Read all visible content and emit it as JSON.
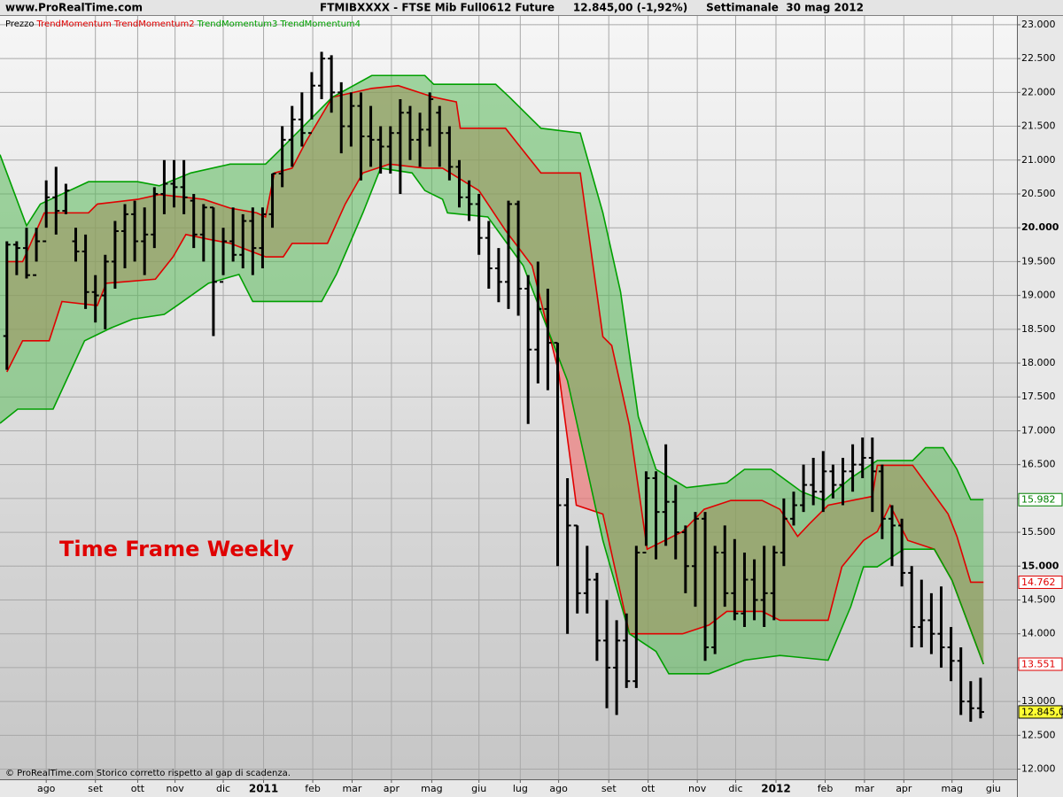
{
  "header": {
    "site": "www.ProRealTime.com",
    "title": "FTMIBXXXX - FTSE Mib Full0612 Future     12.845,00 (-1,92%)     Settimanale  30 mag 2012"
  },
  "chart_data": {
    "type": "ohlc",
    "annotation": "Time Frame Weekly",
    "footer": "© ProRealTime.com  Storico corretto rispetto al gap di scadenza.",
    "xlim": [
      -0.7,
      102.7
    ],
    "ylim": [
      11850,
      23130
    ],
    "grid": true,
    "xticks": [
      {
        "value": 4.0,
        "label": "ago"
      },
      {
        "value": 9.0,
        "label": "set"
      },
      {
        "value": 13.3,
        "label": "ott"
      },
      {
        "value": 17.1,
        "label": "nov"
      },
      {
        "value": 22.0,
        "label": "dic"
      },
      {
        "value": 26.1,
        "label": "2011"
      },
      {
        "value": 31.1,
        "label": "feb"
      },
      {
        "value": 35.1,
        "label": "mar"
      },
      {
        "value": 39.1,
        "label": "apr"
      },
      {
        "value": 43.2,
        "label": "mag"
      },
      {
        "value": 48.0,
        "label": "giu"
      },
      {
        "value": 52.2,
        "label": "lug"
      },
      {
        "value": 56.1,
        "label": "ago"
      },
      {
        "value": 61.2,
        "label": "set"
      },
      {
        "value": 65.2,
        "label": "ott"
      },
      {
        "value": 70.2,
        "label": "nov"
      },
      {
        "value": 74.1,
        "label": "dic"
      },
      {
        "value": 78.2,
        "label": "2012"
      },
      {
        "value": 83.2,
        "label": "feb"
      },
      {
        "value": 87.2,
        "label": "mar"
      },
      {
        "value": 91.2,
        "label": "apr"
      },
      {
        "value": 96.1,
        "label": "mag"
      },
      {
        "value": 100.3,
        "label": "giu"
      }
    ],
    "yticks": [
      {
        "value": 12000,
        "label": "12.000"
      },
      {
        "value": 12500,
        "label": "12.500"
      },
      {
        "value": 13000,
        "label": "13.000"
      },
      {
        "value": 13500,
        "label": "13.500"
      },
      {
        "value": 14000,
        "label": "14.000"
      },
      {
        "value": 14500,
        "label": "14.500"
      },
      {
        "value": 15000,
        "label": "15.000"
      },
      {
        "value": 15500,
        "label": "15.500"
      },
      {
        "value": 16000,
        "label": "16.000"
      },
      {
        "value": 16500,
        "label": "16.500"
      },
      {
        "value": 17000,
        "label": "17.000"
      },
      {
        "value": 17500,
        "label": "17.500"
      },
      {
        "value": 18000,
        "label": "18.000"
      },
      {
        "value": 18500,
        "label": "18.500"
      },
      {
        "value": 19000,
        "label": "19.000"
      },
      {
        "value": 19500,
        "label": "19.500"
      },
      {
        "value": 20000,
        "label": "20.000"
      },
      {
        "value": 20500,
        "label": "20.500"
      },
      {
        "value": 21000,
        "label": "21.000"
      },
      {
        "value": 21500,
        "label": "21.500"
      },
      {
        "value": 22000,
        "label": "22.000"
      },
      {
        "value": 22500,
        "label": "22.500"
      },
      {
        "value": 23000,
        "label": "23.000"
      }
    ],
    "price_tags": [
      {
        "value": 15982,
        "label": "15.982",
        "color": "#008000",
        "background": "#ffffff"
      },
      {
        "value": 14762,
        "label": "14.762",
        "color": "#e00000",
        "background": "#ffffff"
      },
      {
        "value": 13551,
        "label": "13.551",
        "color": "#e00000",
        "background": "#ffffff"
      },
      {
        "value": 12845,
        "label": "12.845,0",
        "color": "#000000",
        "background": "#ffff33"
      }
    ],
    "series": [
      {
        "name": "Prezzo",
        "color": "#000000",
        "values": [
          [
            18400,
            19800,
            17900,
            19750
          ],
          [
            19750,
            19800,
            19300,
            19700
          ],
          [
            19700,
            20000,
            19250,
            19300
          ],
          [
            19300,
            20000,
            19500,
            19800
          ],
          [
            19800,
            20700,
            20000,
            20450
          ],
          [
            20450,
            20900,
            19900,
            20250
          ],
          [
            20250,
            20650,
            20200,
            20550
          ],
          [
            19800,
            20000,
            19500,
            19650
          ],
          [
            19650,
            19900,
            18800,
            19050
          ],
          [
            19050,
            19300,
            18600,
            19000
          ],
          [
            19000,
            19600,
            18500,
            19500
          ],
          [
            19500,
            20100,
            19100,
            19950
          ],
          [
            19950,
            20350,
            19400,
            20200
          ],
          [
            20200,
            20400,
            19500,
            19800
          ],
          [
            19800,
            20300,
            19300,
            19900
          ],
          [
            19900,
            20600,
            19700,
            20500
          ],
          [
            20500,
            21000,
            20200,
            20650
          ],
          [
            20650,
            21000,
            20300,
            20600
          ],
          [
            20600,
            21000,
            20200,
            20450
          ],
          [
            20400,
            20500,
            19700,
            19900
          ],
          [
            19900,
            20350,
            19500,
            20300
          ],
          [
            20300,
            20300,
            18400,
            19200
          ],
          [
            19200,
            20000,
            19300,
            19800
          ],
          [
            19800,
            20300,
            19500,
            19600
          ],
          [
            19600,
            20200,
            19400,
            20100
          ],
          [
            20100,
            20300,
            19300,
            19700
          ],
          [
            19700,
            20300,
            19400,
            20200
          ],
          [
            20200,
            20800,
            20000,
            20800
          ],
          [
            20800,
            21500,
            20600,
            21300
          ],
          [
            21300,
            21800,
            20900,
            21600
          ],
          [
            21600,
            22000,
            21200,
            21400
          ],
          [
            21400,
            22300,
            21600,
            22100
          ],
          [
            22100,
            22600,
            21900,
            22500
          ],
          [
            22500,
            22550,
            21700,
            22000
          ],
          [
            22000,
            22150,
            21100,
            21500
          ],
          [
            21500,
            22000,
            21200,
            21800
          ],
          [
            21800,
            22000,
            20700,
            21350
          ],
          [
            21350,
            21800,
            20900,
            21300
          ],
          [
            21300,
            21500,
            20800,
            21200
          ],
          [
            21200,
            21500,
            20800,
            21400
          ],
          [
            21400,
            21900,
            20500,
            21700
          ],
          [
            21700,
            21800,
            21000,
            21300
          ],
          [
            21300,
            21700,
            20900,
            21450
          ],
          [
            21450,
            22000,
            21200,
            21900
          ],
          [
            21700,
            21800,
            20900,
            21400
          ],
          [
            21400,
            21500,
            20700,
            20900
          ],
          [
            20900,
            21000,
            20300,
            20450
          ],
          [
            20450,
            20700,
            20100,
            20350
          ],
          [
            20350,
            20500,
            19600,
            19850
          ],
          [
            19850,
            20100,
            19100,
            19400
          ],
          [
            19400,
            19700,
            18900,
            19200
          ],
          [
            19200,
            20400,
            18800,
            20350
          ],
          [
            20350,
            20400,
            18700,
            19100
          ],
          [
            19100,
            19300,
            17100,
            18200
          ],
          [
            18200,
            19500,
            17700,
            18800
          ],
          [
            18800,
            19100,
            17600,
            18300
          ],
          [
            18300,
            18300,
            15000,
            15900
          ],
          [
            15900,
            16300,
            14000,
            15600
          ],
          [
            15600,
            15600,
            14300,
            14600
          ],
          [
            14600,
            15300,
            14300,
            14800
          ],
          [
            14800,
            14900,
            13600,
            13900
          ],
          [
            13900,
            14500,
            12900,
            13500
          ],
          [
            13500,
            14200,
            12800,
            13900
          ],
          [
            13900,
            14300,
            13200,
            13300
          ],
          [
            13300,
            15300,
            13200,
            15200
          ],
          [
            15200,
            16400,
            15300,
            16300
          ],
          [
            16300,
            16400,
            15100,
            15800
          ],
          [
            15800,
            16800,
            15300,
            15950
          ],
          [
            15950,
            16200,
            15100,
            15500
          ],
          [
            15500,
            15600,
            14600,
            15000
          ],
          [
            15000,
            15800,
            14400,
            15700
          ],
          [
            15700,
            15800,
            13600,
            13800
          ],
          [
            13800,
            15300,
            13700,
            15200
          ],
          [
            15200,
            15600,
            14400,
            14600
          ],
          [
            14600,
            15400,
            14200,
            14300
          ],
          [
            14300,
            15200,
            14100,
            14800
          ],
          [
            14800,
            15100,
            14200,
            14500
          ],
          [
            14500,
            15300,
            14100,
            14600
          ],
          [
            14600,
            15300,
            14200,
            15200
          ],
          [
            15200,
            16000,
            15000,
            15700
          ],
          [
            15700,
            16100,
            15600,
            15900
          ],
          [
            15900,
            16500,
            15800,
            16200
          ],
          [
            16200,
            16600,
            15900,
            16100
          ],
          [
            16100,
            16700,
            15800,
            16400
          ],
          [
            16400,
            16500,
            16000,
            16200
          ],
          [
            16200,
            16600,
            15900,
            16400
          ],
          [
            16400,
            16800,
            16100,
            16500
          ],
          [
            16500,
            16900,
            16300,
            16600
          ],
          [
            16600,
            16900,
            15800,
            16400
          ],
          [
            16400,
            16500,
            15400,
            15700
          ],
          [
            15700,
            15900,
            15000,
            15600
          ],
          [
            15600,
            15700,
            14700,
            14900
          ],
          [
            14900,
            15000,
            13800,
            14100
          ],
          [
            14100,
            14800,
            13800,
            14200
          ],
          [
            14200,
            14600,
            13700,
            14000
          ],
          [
            14000,
            14700,
            13500,
            13800
          ],
          [
            13800,
            14100,
            13300,
            13600
          ],
          [
            13600,
            13800,
            12800,
            13000
          ],
          [
            13000,
            13300,
            12700,
            12900
          ],
          [
            12900,
            13350,
            12750,
            12845
          ]
        ]
      },
      {
        "name": "TrendMomentum",
        "color": "#e00000",
        "fill": "rgba(240,110,110,0.62)",
        "x": [
          0,
          1.6,
          3.8,
          8.3,
          9.2,
          13.3,
          15.5,
          20.0,
          22.7,
          25.4,
          26.3,
          27.2,
          29.0,
          30.4,
          33.1,
          37.1,
          39.8,
          43.4,
          45.7,
          46.1,
          50.7,
          52.5,
          54.3,
          58.3,
          60.6,
          61.5,
          63.3,
          65.1,
          68.7,
          70.9,
          73.6,
          76.8,
          78.6,
          80.4,
          81.7,
          83.5,
          88.0,
          88.5,
          92.1,
          95.7,
          96.6,
          98.0,
          99.3
        ],
        "values": [
          19500,
          19500,
          20220,
          20220,
          20350,
          20420,
          20490,
          20420,
          20290,
          20220,
          20160,
          20810,
          20880,
          21270,
          21930,
          22060,
          22100,
          21930,
          21860,
          21470,
          21470,
          21140,
          20810,
          20810,
          18390,
          18260,
          17080,
          15250,
          15510,
          15840,
          15970,
          15970,
          15840,
          15440,
          15640,
          15900,
          16030,
          16490,
          16490,
          15770,
          15440,
          14762,
          14762
        ]
      },
      {
        "name": "TrendMomentum2",
        "color": "#e00000",
        "x": [
          0,
          1.6,
          4.3,
          5.6,
          9.2,
          10.1,
          15.1,
          16.9,
          18.2,
          20.5,
          22.7,
          26.3,
          28.1,
          29.0,
          32.6,
          34.4,
          36.2,
          38.9,
          42.5,
          44.3,
          48.0,
          50.7,
          53.4,
          56.1,
          57.9,
          60.6,
          63.3,
          66.0,
          68.7,
          71.4,
          73.2,
          76.8,
          78.6,
          83.5,
          84.9,
          87.1,
          88.5,
          89.8,
          91.6,
          94.3,
          96.1,
          99.3
        ],
        "values": [
          17870,
          18330,
          18330,
          18910,
          18850,
          19180,
          19240,
          19570,
          19900,
          19830,
          19770,
          19570,
          19570,
          19770,
          19770,
          20350,
          20810,
          20940,
          20880,
          20880,
          20550,
          19960,
          19440,
          17870,
          15900,
          15770,
          14000,
          14000,
          14000,
          14130,
          14330,
          14330,
          14200,
          14200,
          14990,
          15380,
          15510,
          15900,
          15380,
          15250,
          14790,
          13551
        ]
      },
      {
        "name": "TrendMomentum3",
        "color": "#00a000",
        "fill": "rgba(90,185,90,0.55)",
        "x": [
          -0.7,
          2.0,
          3.4,
          8.3,
          13.3,
          15.5,
          18.7,
          22.7,
          26.3,
          27.7,
          33.1,
          37.1,
          42.5,
          43.4,
          49.7,
          51.1,
          54.3,
          58.3,
          60.6,
          62.4,
          64.2,
          66.0,
          69.1,
          73.2,
          75.0,
          77.7,
          80.8,
          83.1,
          85.8,
          88.5,
          92.1,
          93.4,
          95.2,
          96.6,
          98.0,
          99.3
        ],
        "values": [
          21080,
          20030,
          20350,
          20680,
          20680,
          20620,
          20810,
          20940,
          20940,
          21140,
          21930,
          22250,
          22250,
          22120,
          22120,
          21930,
          21470,
          21400,
          20220,
          19050,
          17210,
          16430,
          16160,
          16230,
          16430,
          16430,
          16100,
          15970,
          16300,
          16560,
          16560,
          16750,
          16750,
          16430,
          15982,
          15982
        ]
      },
      {
        "name": "TrendMomentum4",
        "color": "#00a000",
        "x": [
          -0.7,
          1.1,
          4.7,
          7.9,
          10.6,
          12.8,
          16.0,
          17.3,
          20.5,
          23.6,
          25.0,
          32.0,
          33.5,
          36.2,
          38.0,
          41.2,
          42.5,
          44.3,
          44.8,
          48.9,
          52.5,
          57.0,
          60.6,
          63.3,
          66.0,
          67.3,
          71.4,
          75.0,
          78.6,
          83.5,
          85.8,
          87.1,
          88.5,
          91.2,
          94.3,
          96.1,
          99.3
        ],
        "values": [
          17110,
          17320,
          17320,
          18330,
          18520,
          18650,
          18720,
          18850,
          19180,
          19310,
          18910,
          18910,
          19310,
          20220,
          20880,
          20810,
          20550,
          20420,
          20220,
          20160,
          19440,
          17740,
          15380,
          14000,
          13740,
          13410,
          13410,
          13610,
          13680,
          13610,
          14400,
          14990,
          14990,
          15250,
          15250,
          14790,
          13551
        ]
      }
    ]
  }
}
